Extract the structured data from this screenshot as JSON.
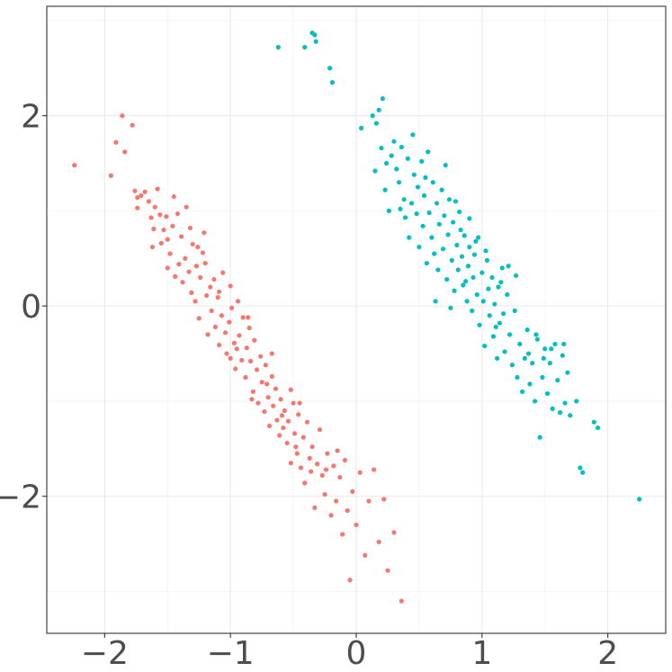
{
  "chart_data": {
    "type": "scatter",
    "title": "",
    "xlabel": "",
    "ylabel": "",
    "xlim": [
      -2.46,
      2.46
    ],
    "ylim": [
      -3.44,
      3.15
    ],
    "x_ticks": [
      -2,
      -1,
      0,
      1,
      2
    ],
    "y_ticks": [
      -2,
      0,
      2
    ],
    "x_tick_labels": [
      "−2",
      "−1",
      "0",
      "1",
      "2"
    ],
    "y_tick_labels": [
      "−2",
      "0",
      "2"
    ],
    "grid": true,
    "legend": "none",
    "series": [
      {
        "color": "#F8766D",
        "points": [
          [
            -2.24,
            1.48
          ],
          [
            -1.95,
            1.37
          ],
          [
            -1.91,
            1.72
          ],
          [
            -1.86,
            2.0
          ],
          [
            -1.84,
            1.62
          ],
          [
            -1.78,
            1.9
          ],
          [
            -1.76,
            1.21
          ],
          [
            -1.74,
            1.14
          ],
          [
            -1.74,
            1.03
          ],
          [
            -1.71,
            1.16
          ],
          [
            -1.68,
            1.2
          ],
          [
            -1.65,
            1.1
          ],
          [
            -1.63,
            0.93
          ],
          [
            -1.61,
            0.81
          ],
          [
            -1.6,
            1.04
          ],
          [
            -1.58,
            1.23
          ],
          [
            -1.56,
            0.96
          ],
          [
            -1.55,
            0.66
          ],
          [
            -1.53,
            0.8
          ],
          [
            -1.51,
            0.94
          ],
          [
            -1.5,
            0.7
          ],
          [
            -1.48,
            0.55
          ],
          [
            -1.46,
            0.84
          ],
          [
            -1.44,
            0.31
          ],
          [
            -1.42,
            0.97
          ],
          [
            -1.41,
            0.44
          ],
          [
            -1.39,
            0.73
          ],
          [
            -1.38,
            0.25
          ],
          [
            -1.36,
            0.5
          ],
          [
            -1.35,
            1.04
          ],
          [
            -1.33,
            0.36
          ],
          [
            -1.31,
            0.14
          ],
          [
            -1.3,
            0.65
          ],
          [
            -1.28,
            0.05
          ],
          [
            -1.27,
            0.42
          ],
          [
            -1.25,
            -0.13
          ],
          [
            -1.24,
            0.3
          ],
          [
            -1.22,
            0.56
          ],
          [
            -1.21,
            0.77
          ],
          [
            -1.19,
            0.11
          ],
          [
            -1.18,
            -0.3
          ],
          [
            -1.16,
            0.2
          ],
          [
            -1.15,
            -0.05
          ],
          [
            -1.13,
            0.28
          ],
          [
            -1.12,
            -0.22
          ],
          [
            -1.1,
            0.09
          ],
          [
            -1.09,
            -0.41
          ],
          [
            -1.07,
            -0.1
          ],
          [
            -1.06,
            0.35
          ],
          [
            -1.04,
            -0.28
          ],
          [
            -1.03,
            -0.5
          ],
          [
            -1.01,
            -0.17
          ],
          [
            -1.0,
            0.21
          ],
          [
            -0.99,
            -0.02
          ],
          [
            -0.97,
            -0.39
          ],
          [
            -0.96,
            -0.66
          ],
          [
            -0.94,
            0.05
          ],
          [
            -0.93,
            -0.31
          ],
          [
            -0.91,
            -0.57
          ],
          [
            -0.9,
            -0.12
          ],
          [
            -0.88,
            -0.75
          ],
          [
            -0.87,
            -0.44
          ],
          [
            -0.85,
            -0.23
          ],
          [
            -0.84,
            -0.58
          ],
          [
            -0.82,
            -0.9
          ],
          [
            -0.81,
            -0.36
          ],
          [
            -0.79,
            -0.67
          ],
          [
            -0.78,
            -1.02
          ],
          [
            -0.76,
            -0.53
          ],
          [
            -0.75,
            -0.8
          ],
          [
            -0.73,
            -1.11
          ],
          [
            -0.72,
            -0.62
          ],
          [
            -0.7,
            -0.96
          ],
          [
            -0.69,
            -1.26
          ],
          [
            -0.67,
            -0.74
          ],
          [
            -0.66,
            -1.05
          ],
          [
            -0.64,
            -0.87
          ],
          [
            -0.63,
            -1.2
          ],
          [
            -0.61,
            -1.36
          ],
          [
            -0.6,
            -0.98
          ],
          [
            -0.58,
            -1.28
          ],
          [
            -0.57,
            -1.1
          ],
          [
            -0.55,
            -1.44
          ],
          [
            -0.54,
            -1.21
          ],
          [
            -0.52,
            -1.65
          ],
          [
            -0.5,
            -1.02
          ],
          [
            -0.49,
            -1.34
          ],
          [
            -0.47,
            -1.55
          ],
          [
            -0.46,
            -1.14
          ],
          [
            -0.44,
            -1.7
          ],
          [
            -0.42,
            -1.38
          ],
          [
            -0.41,
            -1.86
          ],
          [
            -0.39,
            -1.22
          ],
          [
            -0.37,
            -1.6
          ],
          [
            -0.35,
            -1.48
          ],
          [
            -0.33,
            -2.12
          ],
          [
            -0.31,
            -1.66
          ],
          [
            -0.29,
            -1.3
          ],
          [
            -0.27,
            -1.78
          ],
          [
            -0.25,
            -1.98
          ],
          [
            -0.23,
            -1.55
          ],
          [
            -0.2,
            -2.2
          ],
          [
            -0.18,
            -1.68
          ],
          [
            -0.16,
            -2.05
          ],
          [
            -0.13,
            -1.8
          ],
          [
            -0.11,
            -2.4
          ],
          [
            -0.09,
            -1.62
          ],
          [
            -0.07,
            -2.15
          ],
          [
            -0.05,
            -2.88
          ],
          [
            -0.03,
            -1.95
          ],
          [
            0.0,
            -2.3
          ],
          [
            0.03,
            -1.75
          ],
          [
            0.07,
            -2.62
          ],
          [
            0.1,
            -2.05
          ],
          [
            0.14,
            -1.72
          ],
          [
            0.18,
            -2.48
          ],
          [
            0.22,
            -2.03
          ],
          [
            0.25,
            -2.78
          ],
          [
            0.3,
            -2.38
          ],
          [
            0.36,
            -3.1
          ],
          [
            -1.45,
            1.15
          ],
          [
            -1.32,
            0.82
          ],
          [
            -1.2,
            0.45
          ],
          [
            -1.09,
            0.15
          ],
          [
            -0.95,
            -0.45
          ],
          [
            -0.83,
            -0.98
          ],
          [
            -0.71,
            -0.82
          ],
          [
            -0.59,
            -1.15
          ],
          [
            -0.48,
            -1.48
          ],
          [
            -0.36,
            -1.74
          ],
          [
            -0.24,
            -1.72
          ],
          [
            -0.15,
            -1.52
          ],
          [
            -0.67,
            -0.5
          ],
          [
            -0.52,
            -0.88
          ],
          [
            -0.45,
            -1.02
          ],
          [
            -0.86,
            -0.12
          ],
          [
            -1.0,
            -0.55
          ],
          [
            -1.26,
            0.62
          ],
          [
            -1.5,
            0.4
          ],
          [
            -1.62,
            0.62
          ]
        ]
      },
      {
        "color": "#00BFC4",
        "points": [
          [
            -0.62,
            2.72
          ],
          [
            -0.41,
            2.72
          ],
          [
            -0.35,
            2.87
          ],
          [
            -0.33,
            2.85
          ],
          [
            -0.32,
            2.78
          ],
          [
            -0.21,
            2.5
          ],
          [
            -0.19,
            2.35
          ],
          [
            0.04,
            1.87
          ],
          [
            0.13,
            2.0
          ],
          [
            0.15,
            1.42
          ],
          [
            0.16,
            1.92
          ],
          [
            0.18,
            2.06
          ],
          [
            0.2,
            1.66
          ],
          [
            0.21,
            2.18
          ],
          [
            0.23,
            1.22
          ],
          [
            0.24,
            1.5
          ],
          [
            0.26,
            1.0
          ],
          [
            0.28,
            1.58
          ],
          [
            0.3,
            1.73
          ],
          [
            0.32,
            1.44
          ],
          [
            0.34,
            1.3
          ],
          [
            0.36,
            1.67
          ],
          [
            0.38,
            1.12
          ],
          [
            0.39,
            0.93
          ],
          [
            0.41,
            1.55
          ],
          [
            0.42,
            0.72
          ],
          [
            0.44,
            1.08
          ],
          [
            0.45,
            1.8
          ],
          [
            0.46,
            1.38
          ],
          [
            0.48,
            0.97
          ],
          [
            0.49,
            1.25
          ],
          [
            0.5,
            0.62
          ],
          [
            0.52,
            1.52
          ],
          [
            0.53,
            0.84
          ],
          [
            0.54,
            1.16
          ],
          [
            0.56,
            0.45
          ],
          [
            0.57,
            1.62
          ],
          [
            0.58,
            0.98
          ],
          [
            0.6,
            0.72
          ],
          [
            0.61,
            1.3
          ],
          [
            0.62,
            0.55
          ],
          [
            0.64,
            1.08
          ],
          [
            0.65,
            0.38
          ],
          [
            0.66,
            0.86
          ],
          [
            0.68,
            1.22
          ],
          [
            0.69,
            0.6
          ],
          [
            0.7,
            0.95
          ],
          [
            0.72,
            0.28
          ],
          [
            0.73,
            0.75
          ],
          [
            0.74,
            1.12
          ],
          [
            0.76,
            0.48
          ],
          [
            0.77,
            0.88
          ],
          [
            0.78,
            0.16
          ],
          [
            0.8,
            0.64
          ],
          [
            0.81,
            0.38
          ],
          [
            0.82,
            0.99
          ],
          [
            0.84,
            0.52
          ],
          [
            0.85,
            0.22
          ],
          [
            0.86,
            0.74
          ],
          [
            0.88,
            0.05
          ],
          [
            0.89,
            0.42
          ],
          [
            0.9,
            0.62
          ],
          [
            0.92,
            -0.05
          ],
          [
            0.93,
            0.3
          ],
          [
            0.94,
            0.54
          ],
          [
            0.96,
            0.12
          ],
          [
            0.97,
            0.72
          ],
          [
            0.98,
            -0.2
          ],
          [
            1.0,
            0.35
          ],
          [
            1.01,
            0.05
          ],
          [
            1.02,
            -0.42
          ],
          [
            1.04,
            0.48
          ],
          [
            1.05,
            0.18
          ],
          [
            1.06,
            -0.1
          ],
          [
            1.08,
            0.3
          ],
          [
            1.09,
            -0.32
          ],
          [
            1.1,
            0.02
          ],
          [
            1.12,
            -0.55
          ],
          [
            1.13,
            0.2
          ],
          [
            1.14,
            -0.18
          ],
          [
            1.16,
            0.4
          ],
          [
            1.17,
            -0.08
          ],
          [
            1.18,
            -0.48
          ],
          [
            1.2,
            0.12
          ],
          [
            1.22,
            -0.3
          ],
          [
            1.24,
            -0.62
          ],
          [
            1.26,
            -0.05
          ],
          [
            1.28,
            -0.75
          ],
          [
            1.3,
            -0.4
          ],
          [
            1.32,
            -0.9
          ],
          [
            1.34,
            -0.55
          ],
          [
            1.36,
            -0.25
          ],
          [
            1.38,
            -0.82
          ],
          [
            1.4,
            -0.6
          ],
          [
            1.42,
            -1.0
          ],
          [
            1.44,
            -0.35
          ],
          [
            1.46,
            -1.38
          ],
          [
            1.48,
            -0.75
          ],
          [
            1.5,
            -0.45
          ],
          [
            1.52,
            -0.92
          ],
          [
            1.54,
            -0.6
          ],
          [
            1.56,
            -1.08
          ],
          [
            1.58,
            -0.4
          ],
          [
            1.6,
            -0.78
          ],
          [
            1.62,
            -1.12
          ],
          [
            1.64,
            -0.52
          ],
          [
            1.66,
            -1.02
          ],
          [
            1.68,
            -0.7
          ],
          [
            1.7,
            -1.15
          ],
          [
            1.75,
            -1.0
          ],
          [
            1.78,
            -1.7
          ],
          [
            1.8,
            -1.75
          ],
          [
            1.89,
            -1.22
          ],
          [
            1.92,
            -1.28
          ],
          [
            2.25,
            -2.03
          ],
          [
            0.35,
            1.02
          ],
          [
            0.55,
            1.35
          ],
          [
            0.71,
            1.48
          ],
          [
            0.83,
            0.8
          ],
          [
            0.95,
            0.68
          ],
          [
            1.03,
            0.58
          ],
          [
            1.15,
            0.25
          ],
          [
            1.27,
            0.32
          ],
          [
            1.43,
            -0.3
          ],
          [
            1.55,
            -0.45
          ],
          [
            0.79,
            1.1
          ],
          [
            0.9,
            0.92
          ],
          [
            0.63,
            0.05
          ],
          [
            0.75,
            -0.02
          ],
          [
            0.87,
            0.26
          ],
          [
            1.11,
            -0.22
          ],
          [
            1.21,
            0.42
          ],
          [
            1.37,
            -0.5
          ],
          [
            1.49,
            -0.55
          ],
          [
            1.65,
            -0.4
          ]
        ]
      }
    ]
  }
}
